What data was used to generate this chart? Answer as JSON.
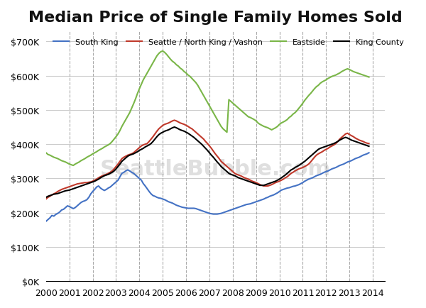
{
  "title": "Median Price of Single Family Homes Sold",
  "background_color": "#ffffff",
  "grid_color": "#cccccc",
  "ylim": [
    0,
    730000
  ],
  "yticks": [
    0,
    100000,
    200000,
    300000,
    400000,
    500000,
    600000,
    700000
  ],
  "ytick_labels": [
    "$0K",
    "$100K",
    "$200K",
    "$300K",
    "$400K",
    "$500K",
    "$600K",
    "$700K"
  ],
  "xlabel_years": [
    2000,
    2001,
    2002,
    2003,
    2004,
    2005,
    2006,
    2007,
    2008,
    2009,
    2010,
    2011,
    2012,
    2013,
    2014
  ],
  "vline_years": [
    2001,
    2002,
    2003,
    2004,
    2005,
    2006,
    2007,
    2008,
    2009,
    2010,
    2011,
    2012,
    2013,
    2014
  ],
  "series": {
    "south_king": {
      "label": "South King",
      "color": "#4472C4",
      "linewidth": 1.5
    },
    "seattle": {
      "label": "Seattle / North King / Vashon",
      "color": "#C0392B",
      "linewidth": 1.5
    },
    "eastside": {
      "label": "Eastside",
      "color": "#7AB648",
      "linewidth": 1.5
    },
    "king_county": {
      "label": "King County",
      "color": "#000000",
      "linewidth": 1.5
    }
  },
  "watermark": "SeattleBubble.com",
  "south_king": [
    175000,
    180000,
    185000,
    192000,
    190000,
    195000,
    198000,
    202000,
    208000,
    210000,
    215000,
    220000,
    218000,
    215000,
    212000,
    215000,
    220000,
    225000,
    230000,
    233000,
    235000,
    238000,
    245000,
    255000,
    262000,
    268000,
    275000,
    278000,
    272000,
    268000,
    265000,
    268000,
    272000,
    275000,
    280000,
    285000,
    290000,
    295000,
    305000,
    315000,
    318000,
    322000,
    325000,
    322000,
    318000,
    315000,
    310000,
    305000,
    300000,
    295000,
    285000,
    278000,
    270000,
    262000,
    255000,
    250000,
    248000,
    245000,
    243000,
    242000,
    240000,
    238000,
    235000,
    232000,
    230000,
    228000,
    225000,
    222000,
    220000,
    218000,
    216000,
    215000,
    214000,
    213000,
    213000,
    213000,
    213000,
    212000,
    210000,
    208000,
    206000,
    204000,
    202000,
    200000,
    198000,
    197000,
    196000,
    196000,
    196000,
    197000,
    198000,
    200000,
    202000,
    204000,
    206000,
    208000,
    210000,
    212000,
    214000,
    216000,
    218000,
    220000,
    222000,
    224000,
    225000,
    226000,
    228000,
    230000,
    232000,
    234000,
    236000,
    238000,
    240000,
    243000,
    245000,
    248000,
    250000,
    252000,
    255000,
    258000,
    262000,
    266000,
    268000,
    270000,
    272000,
    273000,
    275000,
    277000,
    278000,
    280000,
    282000,
    285000,
    288000,
    292000,
    295000,
    298000,
    300000,
    302000,
    305000,
    308000,
    310000,
    312000,
    315000,
    318000,
    320000,
    322000,
    325000,
    328000,
    330000,
    332000,
    335000,
    338000,
    340000,
    342000,
    345000,
    348000,
    350000,
    352000,
    355000,
    358000,
    360000,
    362000,
    365000,
    368000,
    370000,
    372000,
    375000
  ],
  "seattle": [
    240000,
    245000,
    248000,
    252000,
    255000,
    258000,
    262000,
    265000,
    268000,
    270000,
    272000,
    274000,
    276000,
    278000,
    280000,
    282000,
    284000,
    285000,
    286000,
    287000,
    288000,
    288000,
    289000,
    290000,
    292000,
    295000,
    298000,
    302000,
    305000,
    308000,
    310000,
    312000,
    315000,
    318000,
    322000,
    328000,
    335000,
    342000,
    350000,
    358000,
    362000,
    365000,
    368000,
    370000,
    372000,
    375000,
    380000,
    385000,
    390000,
    395000,
    398000,
    400000,
    402000,
    408000,
    415000,
    422000,
    430000,
    438000,
    445000,
    450000,
    455000,
    458000,
    460000,
    462000,
    465000,
    468000,
    470000,
    468000,
    465000,
    462000,
    460000,
    458000,
    455000,
    452000,
    448000,
    445000,
    440000,
    435000,
    430000,
    425000,
    420000,
    415000,
    408000,
    402000,
    395000,
    388000,
    380000,
    372000,
    365000,
    358000,
    350000,
    345000,
    340000,
    335000,
    330000,
    325000,
    320000,
    315000,
    312000,
    310000,
    308000,
    305000,
    302000,
    300000,
    298000,
    295000,
    292000,
    290000,
    288000,
    285000,
    282000,
    280000,
    278000,
    278000,
    278000,
    280000,
    282000,
    285000,
    288000,
    290000,
    292000,
    295000,
    298000,
    302000,
    305000,
    310000,
    315000,
    318000,
    322000,
    325000,
    328000,
    330000,
    332000,
    335000,
    338000,
    342000,
    348000,
    355000,
    362000,
    368000,
    372000,
    375000,
    378000,
    382000,
    385000,
    388000,
    392000,
    395000,
    398000,
    402000,
    408000,
    415000,
    420000,
    425000,
    430000,
    432000,
    428000,
    425000,
    422000,
    418000,
    415000,
    412000,
    410000,
    408000,
    405000,
    403000,
    402000
  ],
  "eastside": [
    375000,
    370000,
    368000,
    365000,
    362000,
    360000,
    358000,
    355000,
    352000,
    350000,
    348000,
    345000,
    342000,
    340000,
    338000,
    342000,
    345000,
    348000,
    352000,
    355000,
    358000,
    362000,
    365000,
    368000,
    372000,
    375000,
    378000,
    382000,
    385000,
    388000,
    392000,
    395000,
    398000,
    402000,
    408000,
    415000,
    422000,
    430000,
    440000,
    452000,
    462000,
    472000,
    482000,
    492000,
    505000,
    518000,
    532000,
    548000,
    562000,
    575000,
    588000,
    598000,
    608000,
    618000,
    628000,
    638000,
    648000,
    658000,
    665000,
    670000,
    672000,
    668000,
    662000,
    655000,
    648000,
    642000,
    638000,
    632000,
    628000,
    622000,
    618000,
    612000,
    608000,
    602000,
    598000,
    592000,
    586000,
    580000,
    572000,
    562000,
    552000,
    542000,
    532000,
    522000,
    512000,
    502000,
    492000,
    482000,
    472000,
    462000,
    452000,
    445000,
    440000,
    435000,
    530000,
    525000,
    520000,
    515000,
    510000,
    505000,
    500000,
    495000,
    490000,
    485000,
    480000,
    478000,
    475000,
    472000,
    468000,
    462000,
    458000,
    455000,
    452000,
    450000,
    448000,
    445000,
    442000,
    445000,
    448000,
    452000,
    458000,
    462000,
    465000,
    468000,
    472000,
    478000,
    482000,
    488000,
    492000,
    498000,
    505000,
    512000,
    520000,
    528000,
    535000,
    542000,
    548000,
    555000,
    562000,
    568000,
    572000,
    578000,
    582000,
    585000,
    588000,
    592000,
    595000,
    598000,
    600000,
    602000,
    605000,
    608000,
    612000,
    615000,
    618000,
    620000,
    618000,
    615000,
    612000,
    610000,
    608000,
    606000,
    604000,
    602000,
    600000,
    598000,
    596000
  ],
  "king_county": [
    245000,
    248000,
    250000,
    252000,
    254000,
    255000,
    256000,
    258000,
    260000,
    262000,
    264000,
    265000,
    266000,
    268000,
    270000,
    272000,
    274000,
    276000,
    278000,
    280000,
    282000,
    284000,
    286000,
    288000,
    290000,
    292000,
    295000,
    298000,
    302000,
    305000,
    308000,
    310000,
    312000,
    315000,
    318000,
    322000,
    328000,
    335000,
    342000,
    350000,
    355000,
    360000,
    365000,
    368000,
    370000,
    372000,
    375000,
    378000,
    382000,
    385000,
    388000,
    392000,
    395000,
    398000,
    402000,
    408000,
    415000,
    422000,
    428000,
    432000,
    435000,
    438000,
    440000,
    442000,
    445000,
    448000,
    450000,
    448000,
    445000,
    442000,
    440000,
    438000,
    435000,
    432000,
    428000,
    424000,
    420000,
    415000,
    410000,
    405000,
    400000,
    394000,
    388000,
    382000,
    375000,
    368000,
    362000,
    355000,
    348000,
    342000,
    335000,
    330000,
    325000,
    320000,
    315000,
    312000,
    310000,
    308000,
    305000,
    302000,
    300000,
    298000,
    296000,
    294000,
    292000,
    290000,
    288000,
    286000,
    284000,
    282000,
    280000,
    280000,
    280000,
    282000,
    284000,
    286000,
    288000,
    290000,
    292000,
    295000,
    298000,
    302000,
    306000,
    310000,
    315000,
    320000,
    325000,
    328000,
    332000,
    335000,
    338000,
    342000,
    346000,
    350000,
    355000,
    360000,
    365000,
    370000,
    375000,
    380000,
    385000,
    388000,
    390000,
    392000,
    394000,
    396000,
    398000,
    400000,
    402000,
    405000,
    408000,
    412000,
    415000,
    418000,
    420000,
    418000,
    415000,
    412000,
    410000,
    408000,
    406000,
    404000,
    402000,
    400000,
    398000,
    396000,
    394000
  ]
}
